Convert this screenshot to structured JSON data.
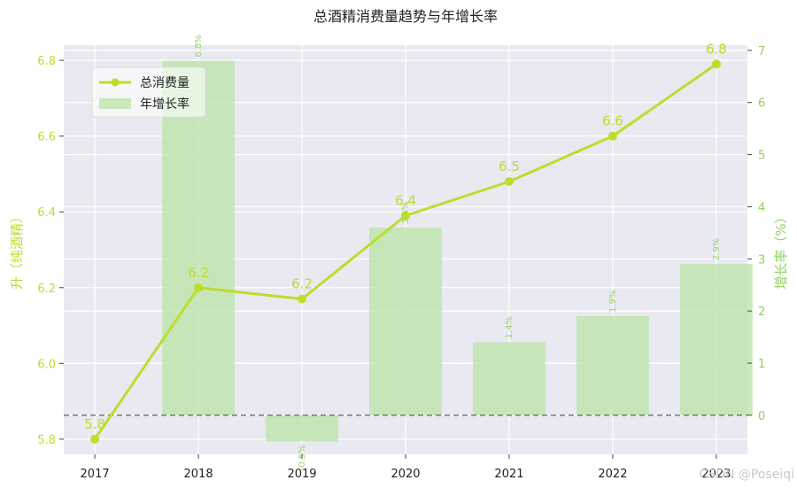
{
  "colors": {
    "line": "#bddd2c",
    "bar": "#b9e3a6",
    "bar_label": "#99d26c",
    "left_axis": "#bddd2c",
    "right_axis": "#8fd15f",
    "plot_bg": "#e9e9f1",
    "grid": "#ffffff",
    "zero_line": "#808080"
  },
  "watermark": "CSDN @Poseiqi",
  "chart_data": {
    "type": "bar+line",
    "title": "总酒精消费量趋势与年增长率",
    "categories": [
      "2017",
      "2018",
      "2019",
      "2020",
      "2021",
      "2022",
      "2023"
    ],
    "line_series": {
      "name": "总消费量",
      "axis": "left",
      "values": [
        5.8,
        6.2,
        6.17,
        6.39,
        6.48,
        6.6,
        6.79
      ],
      "labels": [
        "5.8",
        "6.2",
        "6.2",
        "6.4",
        "6.5",
        "6.6",
        "6.8"
      ]
    },
    "bar_series": {
      "name": "年增长率",
      "axis": "right",
      "values": [
        null,
        6.8,
        -0.5,
        3.6,
        1.4,
        1.9,
        2.9
      ],
      "labels": [
        "",
        "6.8%",
        "-0.5%",
        "3.6%",
        "1.4%",
        "1.9%",
        "2.9%"
      ]
    },
    "left_axis": {
      "label": "升（纯酒精）",
      "ylim": [
        5.76,
        6.84
      ],
      "ticks": [
        "5.8",
        "6.0",
        "6.2",
        "6.4",
        "6.6",
        "6.8"
      ],
      "tick_values": [
        5.8,
        6.0,
        6.2,
        6.4,
        6.6,
        6.8
      ]
    },
    "right_axis": {
      "label": "增长率（%）",
      "ylim": [
        -0.75,
        7.1
      ],
      "ticks": [
        "0",
        "1",
        "2",
        "3",
        "4",
        "5",
        "6",
        "7"
      ],
      "tick_values": [
        0,
        1,
        2,
        3,
        4,
        5,
        6,
        7
      ]
    },
    "reference_line": {
      "axis": "right",
      "value": 0,
      "style": "dashed"
    },
    "grid": true,
    "legend": {
      "placement": "top-left",
      "entries": [
        {
          "label": "总消费量",
          "kind": "line"
        },
        {
          "label": "年增长率",
          "kind": "bar"
        }
      ]
    }
  }
}
